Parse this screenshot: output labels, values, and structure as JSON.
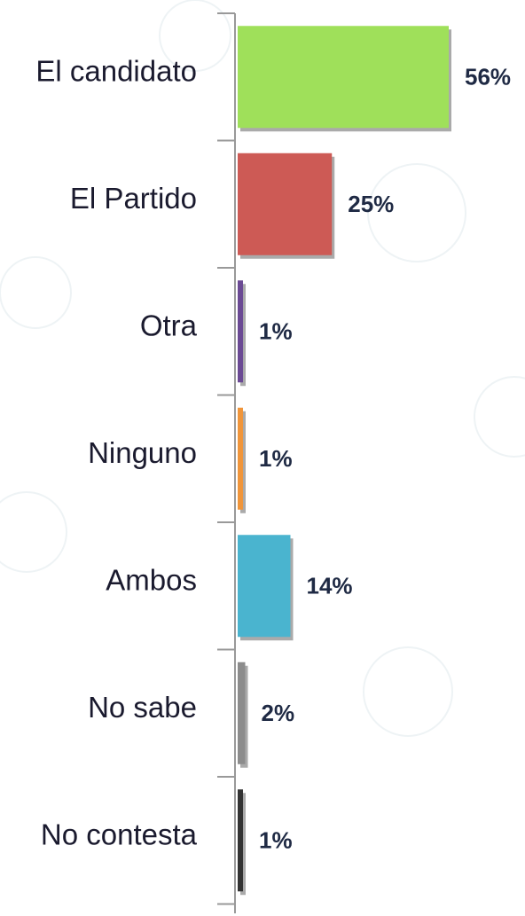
{
  "chart_data": {
    "type": "bar",
    "orientation": "horizontal",
    "categories": [
      "El candidato",
      "El Partido",
      "Otra",
      "Ninguno",
      "Ambos",
      "No sabe",
      "No contesta"
    ],
    "values": [
      56,
      25,
      1,
      1,
      14,
      2,
      1
    ],
    "value_labels": [
      "56%",
      "25%",
      "1%",
      "1%",
      "14%",
      "2%",
      "1%"
    ],
    "colors": [
      "#9fe05a",
      "#cd5a55",
      "#6b4a94",
      "#f0953a",
      "#4ab4cf",
      "#8c8c8c",
      "#333333"
    ]
  }
}
